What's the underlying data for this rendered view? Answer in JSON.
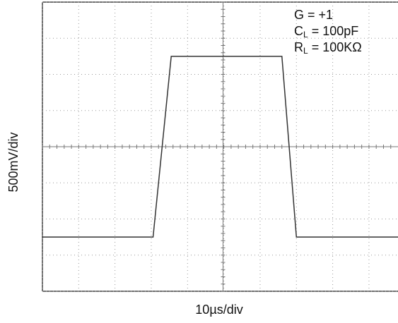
{
  "chart_data": {
    "type": "line",
    "x_label": "10µs/div",
    "y_label": "500mV/div",
    "annotations": [
      [
        "G = +1"
      ],
      [
        "C",
        "L",
        " = 100pF"
      ],
      [
        "R",
        "L",
        " = 100KΩ"
      ]
    ],
    "x": [
      0,
      30.5,
      35.5,
      66,
      70,
      98
    ],
    "series": [
      {
        "color": "#333333",
        "values": [
          -1250,
          -1250,
          1250,
          1250,
          -1250,
          -1250
        ]
      }
    ],
    "xlim": [
      0,
      98
    ],
    "xticks": [
      0,
      10,
      20,
      30,
      40,
      50,
      60,
      70,
      80,
      90
    ],
    "ylim": [
      -2000,
      2000
    ],
    "yticks": [
      -2000,
      -1500,
      -1000,
      -500,
      0,
      500,
      1000,
      1500,
      2000
    ],
    "grid": true
  }
}
